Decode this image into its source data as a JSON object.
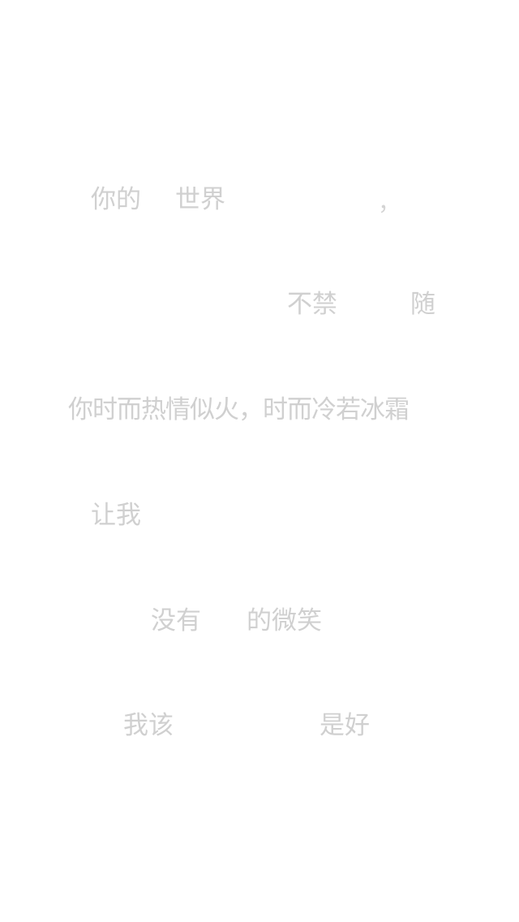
{
  "lines": [
    {
      "parts": [
        "你的",
        "世界",
        "，"
      ]
    },
    {
      "parts": [
        "不禁",
        "随"
      ]
    },
    {
      "parts": [
        "你时而热情似火，时而冷若冰霜"
      ]
    },
    {
      "parts": [
        "让我"
      ]
    },
    {
      "parts": [
        "没有",
        "的微笑"
      ]
    },
    {
      "parts": [
        "我该",
        "是好"
      ]
    }
  ],
  "colors": {
    "background": "#ffffff",
    "text": "#d0d0d0"
  }
}
